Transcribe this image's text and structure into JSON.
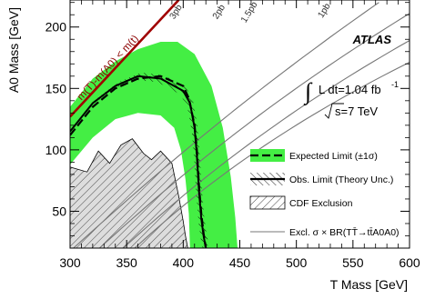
{
  "chart_data": {
    "type": "line",
    "xlabel": "T Mass [GeV]",
    "ylabel": "A0 Mass [GeV]",
    "xlim": [
      300,
      600
    ],
    "ylim": [
      20,
      222
    ],
    "x_ticks": [
      "300",
      "350",
      "400",
      "450",
      "500",
      "550",
      "600"
    ],
    "y_ticks": [
      "50",
      "100",
      "150",
      "200"
    ],
    "experiment_label": "ATLAS",
    "luminosity_text": "L dt=1.04 fb",
    "luminosity_sup": "-1",
    "energy_text": "s=7 TeV",
    "kinematic_label": "m(T)-m(A0) < m(t)",
    "legend": [
      {
        "label": "Expected Limit (±1σ)"
      },
      {
        "label": "Obs. Limit (Theory Unc.)"
      },
      {
        "label": "CDF Exclusion"
      },
      {
        "label": "Excl. σ × BR(TT̄→tt̄A0A0)"
      }
    ],
    "colors": {
      "expected_band": "#44ee44",
      "kinematic_line": "#a00000",
      "cdf_fill": "#dddddd",
      "xs_lines": "#777777"
    },
    "series": [
      {
        "role": "expected",
        "x": [
          300,
          320,
          340,
          360,
          380,
          400,
          405,
          410,
          412,
          414,
          416,
          418,
          420
        ],
        "y": [
          112,
          135,
          150,
          158,
          160,
          152,
          142,
          120,
          100,
          70,
          48,
          32,
          20
        ]
      },
      {
        "role": "expected_band_upper",
        "x": [
          300,
          320,
          340,
          360,
          380,
          395,
          410,
          425,
          435,
          442,
          446,
          448
        ],
        "y": [
          135,
          158,
          172,
          182,
          188,
          188,
          178,
          152,
          118,
          78,
          45,
          20
        ]
      },
      {
        "role": "expected_band_lower",
        "x": [
          300,
          320,
          340,
          360,
          380,
          392,
          398,
          402,
          405,
          406
        ],
        "y": [
          88,
          110,
          125,
          130,
          128,
          118,
          100,
          76,
          48,
          20
        ]
      },
      {
        "role": "observed",
        "x": [
          300,
          320,
          340,
          360,
          380,
          400,
          406,
          410,
          412,
          414,
          416,
          418,
          420
        ],
        "y": [
          115,
          138,
          152,
          160,
          158,
          148,
          138,
          118,
          96,
          66,
          44,
          30,
          20
        ]
      },
      {
        "role": "cdf_exclusion",
        "x": [
          300,
          300,
          315,
          325,
          335,
          345,
          355,
          365,
          372,
          380,
          390,
          396,
          400,
          402,
          404
        ],
        "y": [
          20,
          86,
          82,
          99,
          89,
          104,
          109,
          97,
          92,
          99,
          89,
          62,
          42,
          30,
          20
        ]
      },
      {
        "role": "kinematic_limit",
        "x": [
          300,
          396
        ],
        "y": [
          127,
          222
        ]
      }
    ],
    "xs_contours": [
      {
        "label": "3pb"
      },
      {
        "label": "2pb"
      },
      {
        "label": "1.5pb"
      },
      {
        "label": "1pb"
      }
    ]
  }
}
